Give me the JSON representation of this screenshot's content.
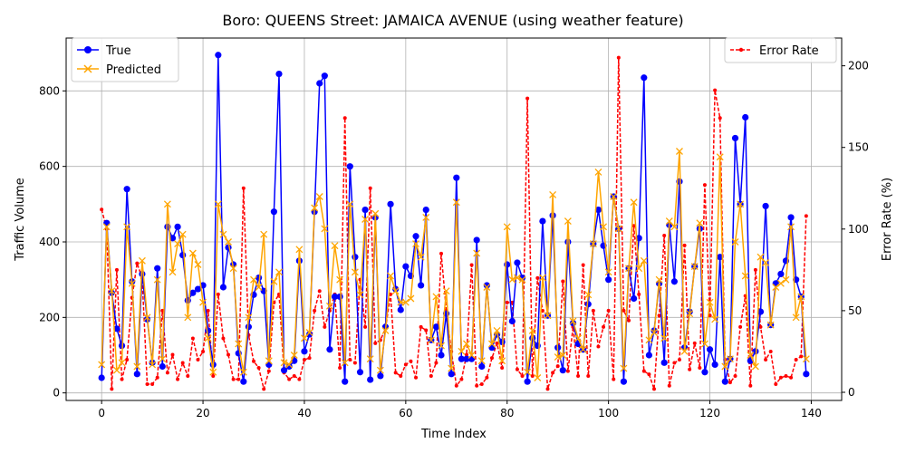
{
  "chart_data": {
    "type": "line",
    "title": "Boro: QUEENS Street: JAMAICA AVENUE (using weather feature)",
    "xlabel": "Time Index",
    "ylabel_left": "Traffic Volume",
    "ylabel_right": "Error Rate (%)",
    "xlim": [
      -7,
      146
    ],
    "ylim_left": [
      -20,
      940
    ],
    "ylim_right": [
      -5,
      217
    ],
    "x_ticks": [
      0,
      20,
      40,
      60,
      80,
      100,
      120,
      140
    ],
    "y_ticks_left": [
      0,
      200,
      400,
      600,
      800
    ],
    "y_ticks_right": [
      0,
      50,
      100,
      150,
      200
    ],
    "grid": true,
    "legend_left_position": "upper-left",
    "legend_right_position": "upper-right",
    "series": [
      {
        "name": "True",
        "axis": "left",
        "color": "#0000ff",
        "marker": "circle",
        "values": [
          40,
          450,
          265,
          170,
          125,
          540,
          295,
          50,
          315,
          195,
          80,
          330,
          70,
          440,
          410,
          440,
          365,
          245,
          265,
          275,
          285,
          165,
          75,
          895,
          280,
          385,
          340,
          105,
          30,
          175,
          260,
          305,
          270,
          75,
          480,
          845,
          60,
          70,
          85,
          350,
          110,
          155,
          480,
          820,
          840,
          115,
          255,
          255,
          30,
          600,
          360,
          55,
          485,
          35,
          465,
          45,
          175,
          500,
          275,
          220,
          335,
          310,
          415,
          285,
          485,
          140,
          175,
          100,
          210,
          50,
          570,
          90,
          90,
          90,
          405,
          70,
          285,
          120,
          155,
          135,
          340,
          190,
          345,
          305,
          30,
          145,
          125,
          455,
          205,
          470,
          120,
          60,
          400,
          185,
          130,
          115,
          235,
          395,
          485,
          390,
          300,
          520,
          435,
          30,
          330,
          250,
          410,
          835,
          100,
          165,
          290,
          80,
          445,
          295,
          560,
          120,
          215,
          335,
          435,
          55,
          115,
          75,
          360,
          30,
          90,
          675,
          500,
          730,
          85,
          110,
          215,
          495,
          180,
          290,
          315,
          350,
          465,
          300,
          255,
          50
        ]
      },
      {
        "name": "Predicted",
        "axis": "left",
        "color": "#ffa500",
        "marker": "x",
        "values": [
          75,
          440,
          270,
          60,
          80,
          440,
          290,
          70,
          350,
          200,
          75,
          300,
          90,
          500,
          320,
          395,
          420,
          200,
          370,
          340,
          240,
          145,
          55,
          500,
          420,
          400,
          330,
          130,
          55,
          200,
          300,
          280,
          420,
          85,
          295,
          320,
          80,
          75,
          100,
          380,
          145,
          160,
          490,
          520,
          435,
          230,
          390,
          300,
          80,
          500,
          320,
          260,
          460,
          90,
          475,
          60,
          165,
          310,
          270,
          240,
          240,
          250,
          395,
          360,
          465,
          140,
          255,
          125,
          270,
          65,
          505,
          110,
          130,
          100,
          370,
          85,
          280,
          130,
          165,
          85,
          440,
          300,
          305,
          300,
          55,
          165,
          40,
          305,
          205,
          525,
          95,
          100,
          455,
          190,
          145,
          115,
          260,
          395,
          585,
          440,
          320,
          520,
          435,
          65,
          330,
          505,
          330,
          350,
          140,
          160,
          300,
          145,
          455,
          440,
          640,
          110,
          210,
          335,
          450,
          130,
          240,
          195,
          625,
          70,
          90,
          400,
          500,
          310,
          100,
          70,
          360,
          345,
          180,
          280,
          290,
          300,
          440,
          200,
          255,
          90
        ]
      },
      {
        "name": "Error Rate",
        "axis": "right",
        "color": "#ff0000",
        "marker": "dot",
        "values": [
          112,
          100,
          2,
          75,
          8,
          20,
          58,
          79,
          70,
          5,
          5,
          9,
          50,
          12,
          23,
          8,
          18,
          10,
          33,
          20,
          25,
          50,
          10,
          60,
          33,
          23,
          8,
          8,
          125,
          35,
          19,
          15,
          2,
          13,
          55,
          60,
          12,
          8,
          10,
          8,
          20,
          21,
          50,
          62,
          40,
          50,
          60,
          15,
          168,
          20,
          18,
          69,
          40,
          125,
          30,
          32,
          39,
          60,
          12,
          10,
          17,
          19,
          9,
          40,
          38,
          10,
          18,
          85,
          50,
          25,
          4,
          8,
          23,
          78,
          4,
          5,
          9,
          21,
          30,
          15,
          55,
          55,
          14,
          10,
          180,
          10,
          70,
          50,
          2,
          12,
          16,
          68,
          13,
          40,
          10,
          78,
          10,
          50,
          28,
          40,
          50,
          8,
          205,
          50,
          44,
          102,
          60,
          13,
          11,
          2,
          47,
          96,
          4,
          18,
          20,
          90,
          14,
          30,
          15,
          127,
          47,
          185,
          168,
          20,
          6,
          10,
          40,
          59,
          4,
          75,
          40,
          20,
          25,
          5,
          9,
          10,
          9,
          20,
          22,
          108
        ]
      }
    ]
  }
}
